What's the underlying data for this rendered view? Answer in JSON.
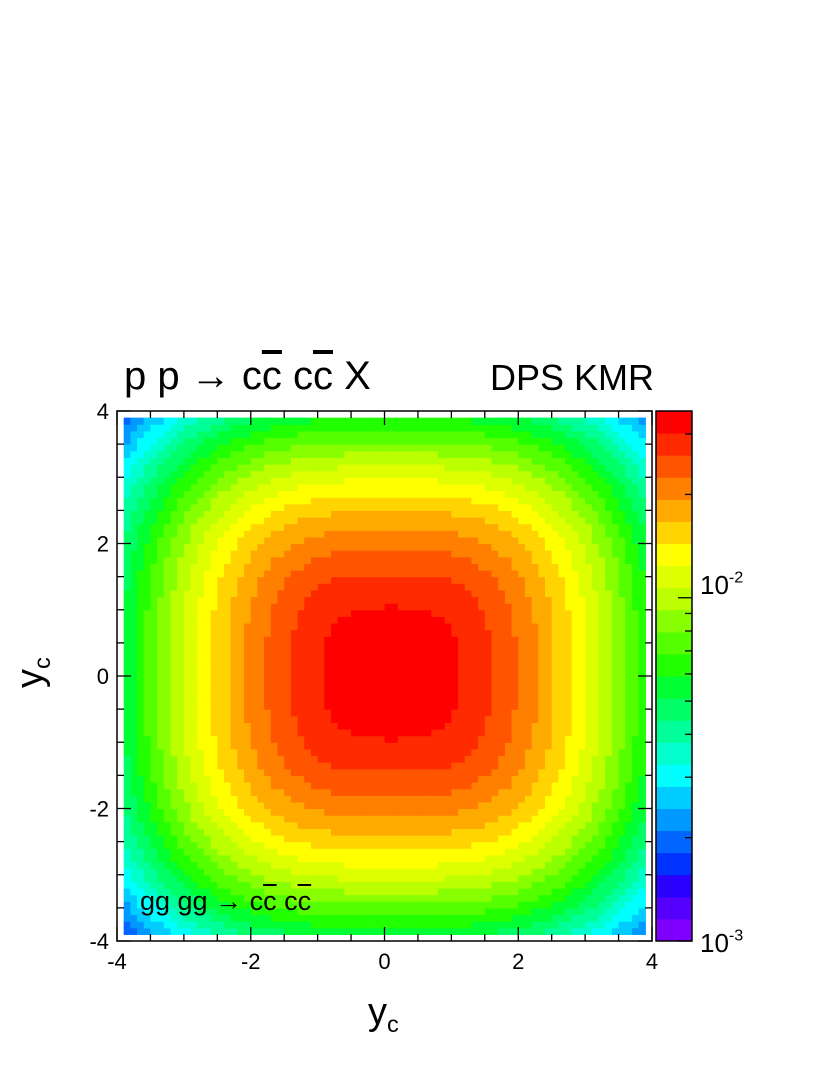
{
  "chart_data": {
    "type": "heatmap",
    "title": {
      "lhs": "p p",
      "arrow": "→",
      "pair1_c": "c",
      "pair1_cbar": "c",
      "pair2_c": "c",
      "pair2_cbar": "c",
      "rest": "X"
    },
    "label_right": "DPS KMR",
    "process": {
      "lhs": "gg gg",
      "arrow": "→",
      "pair1_c": "c",
      "pair1_cbar": "c",
      "pair2_c": "c",
      "pair2_cbar": "c"
    },
    "xlabel": {
      "main": "y",
      "sub": "c"
    },
    "ylabel": {
      "main": "y",
      "sub": "c"
    },
    "xlim": [
      -4,
      4
    ],
    "ylim": [
      -4,
      4
    ],
    "x_ticks": [
      "-4",
      "-2",
      "0",
      "2",
      "4"
    ],
    "y_ticks": [
      "-4",
      "-2",
      "0",
      "2",
      "4"
    ],
    "z_scale": "log",
    "z_range": [
      0.001,
      0.035
    ],
    "z_labels": [
      {
        "base": "10",
        "exp": "-2",
        "value": 0.01
      },
      {
        "base": "10",
        "exp": "-3",
        "value": 0.001
      }
    ],
    "contour_description": "concentric rounded-square contours centered near (0,0)",
    "model": {
      "peak": 0.034,
      "center_x": 0.1,
      "center_y": 0.05,
      "shape_p": 3,
      "e_folding": 2.9
    },
    "palette": [
      "#7f00ff",
      "#5500ff",
      "#2a00ff",
      "#0033ff",
      "#0066ff",
      "#0099ff",
      "#00ccff",
      "#00ffff",
      "#00ffcc",
      "#00ff99",
      "#00ff66",
      "#00ff33",
      "#22ff00",
      "#55ff00",
      "#88ff00",
      "#bbff00",
      "#ddff00",
      "#ffff00",
      "#ffd400",
      "#ffaa00",
      "#ff7f00",
      "#ff5500",
      "#ff2a00",
      "#ff0000"
    ]
  }
}
